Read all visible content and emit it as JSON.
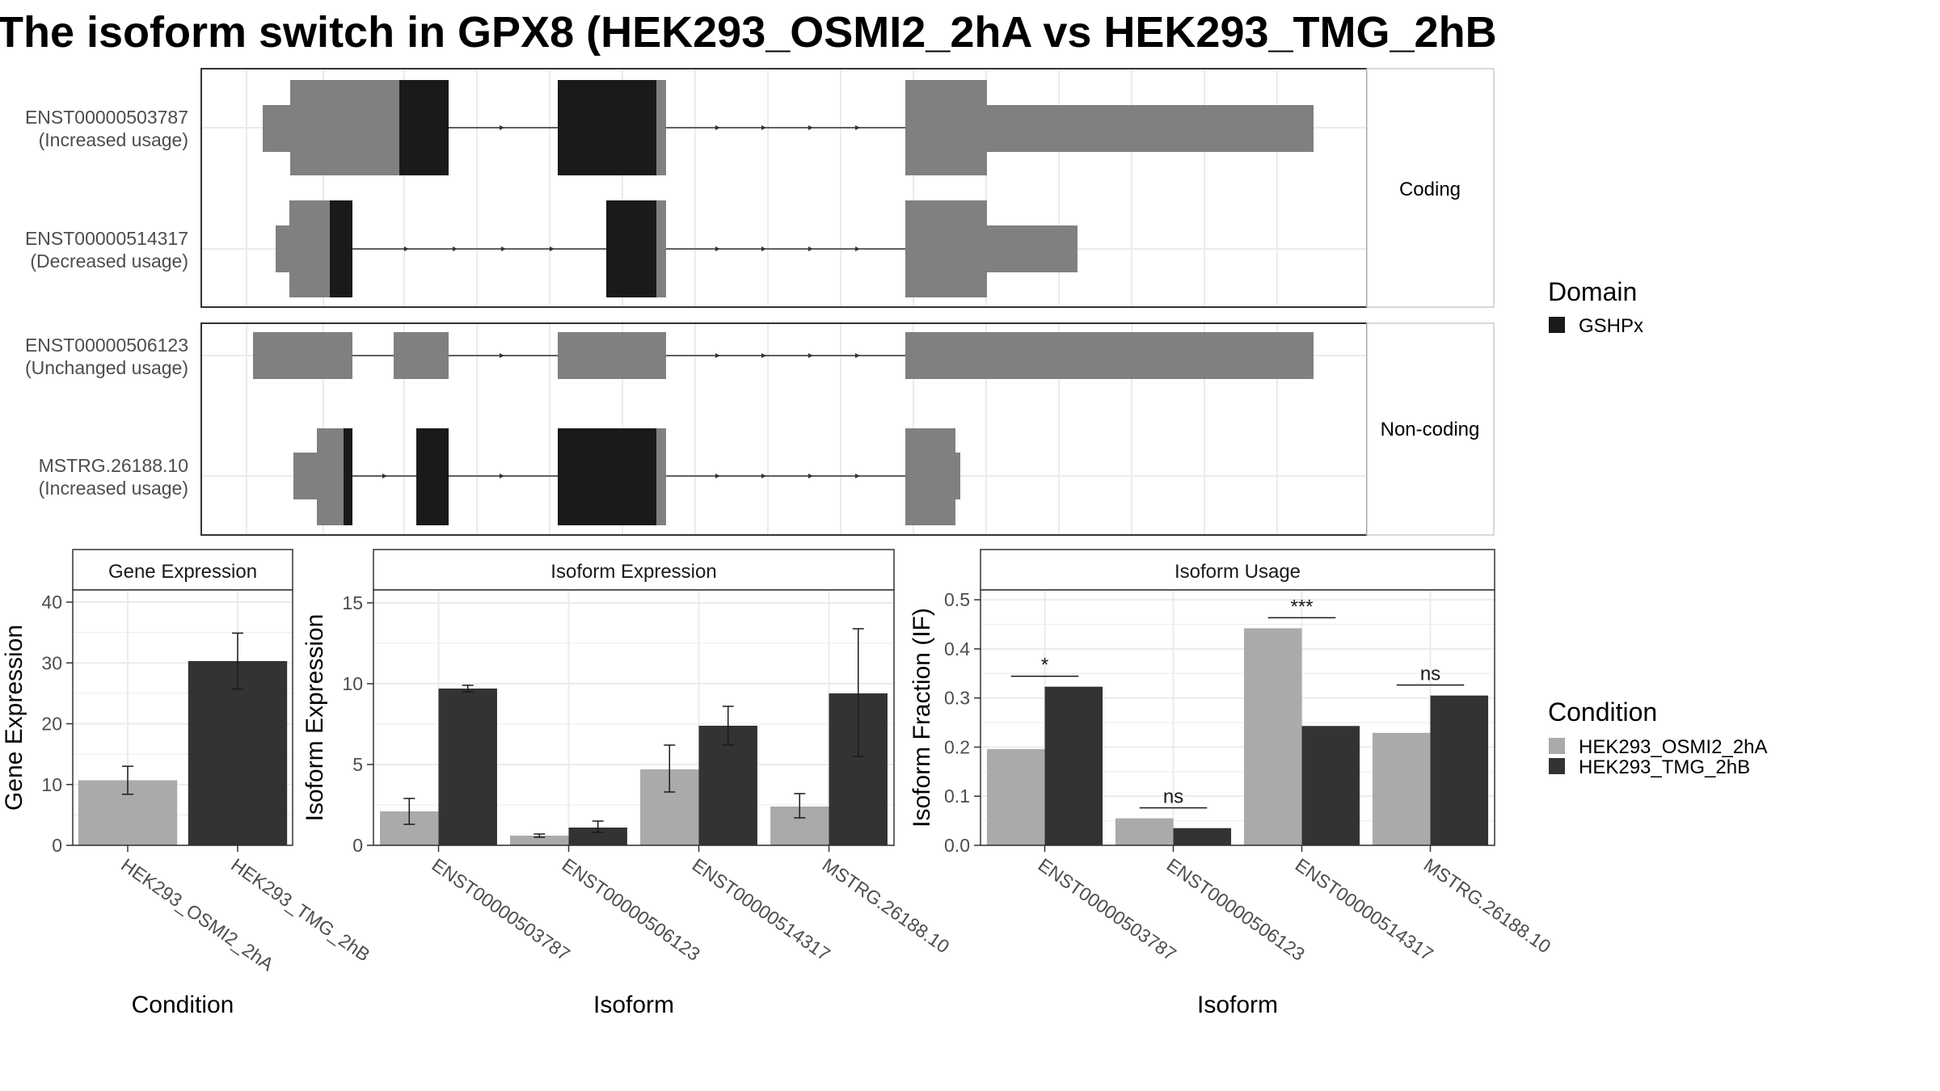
{
  "title": "The isoform switch in GPX8 (HEK293_OSMI2_2hA vs HEK293_TMG_2hB",
  "colors": {
    "exon": "#808080",
    "domain": "#1a1a1a",
    "cond_a": "#aaaaaa",
    "cond_b": "#333333",
    "grid": "#ebebeb",
    "strip_bg": "#ffffff"
  },
  "structure": {
    "coding_label": "Coding",
    "noncoding_label": "Non-coding",
    "transcripts": [
      {
        "id": "ENST00000503787",
        "usage": "(Increased usage)",
        "group": "coding"
      },
      {
        "id": "ENST00000514317",
        "usage": "(Decreased usage)",
        "group": "coding"
      },
      {
        "id": "ENST00000506123",
        "usage": "(Unchanged usage)",
        "group": "noncoding"
      },
      {
        "id": "MSTRG.26188.10",
        "usage": "(Increased usage)",
        "group": "noncoding"
      }
    ]
  },
  "legend_domain": {
    "title": "Domain",
    "items": [
      "GSHPx"
    ]
  },
  "legend_condition": {
    "title": "Condition",
    "items": [
      "HEK293_OSMI2_2hA",
      "HEK293_TMG_2hB"
    ]
  },
  "chart_data": [
    {
      "type": "bar",
      "strip": "Gene Expression",
      "xlabel": "Condition",
      "ylabel": "Gene Expression",
      "ylim": [
        0,
        42
      ],
      "yticks": [
        0,
        10,
        20,
        30,
        40
      ],
      "categories": [
        "HEK293_OSMI2_2hA",
        "HEK293_TMG_2hB"
      ],
      "values": [
        10.7,
        30.3
      ],
      "errors": [
        [
          8.4,
          13.0
        ],
        [
          25.7,
          34.9
        ]
      ]
    },
    {
      "type": "bar",
      "strip": "Isoform Expression",
      "xlabel": "Isoform",
      "ylabel": "Isoform Expression",
      "ylim": [
        0,
        15.8
      ],
      "yticks": [
        0,
        5,
        10,
        15
      ],
      "categories": [
        "ENST00000503787",
        "ENST00000506123",
        "ENST00000514317",
        "MSTRG.26188.10"
      ],
      "series": [
        {
          "name": "HEK293_OSMI2_2hA",
          "values": [
            2.1,
            0.6,
            4.7,
            2.4
          ],
          "errors": [
            [
              1.3,
              2.9
            ],
            [
              0.5,
              0.7
            ],
            [
              3.3,
              6.2
            ],
            [
              1.7,
              3.2
            ]
          ]
        },
        {
          "name": "HEK293_TMG_2hB",
          "values": [
            9.7,
            1.1,
            7.4,
            9.4
          ],
          "errors": [
            [
              9.5,
              9.9
            ],
            [
              0.8,
              1.5
            ],
            [
              6.2,
              8.6
            ],
            [
              5.5,
              13.4
            ]
          ]
        }
      ]
    },
    {
      "type": "bar",
      "strip": "Isoform Usage",
      "xlabel": "Isoform",
      "ylabel": "Isoform Fraction (IF)",
      "ylim": [
        0,
        0.52
      ],
      "yticks": [
        0.0,
        0.1,
        0.2,
        0.3,
        0.4,
        0.5
      ],
      "categories": [
        "ENST00000503787",
        "ENST00000506123",
        "ENST00000514317",
        "MSTRG.26188.10"
      ],
      "series": [
        {
          "name": "HEK293_OSMI2_2hA",
          "values": [
            0.196,
            0.055,
            0.442,
            0.229
          ]
        },
        {
          "name": "HEK293_TMG_2hB",
          "values": [
            0.323,
            0.035,
            0.243,
            0.305
          ]
        }
      ],
      "significance": [
        "*",
        "ns",
        "***",
        "ns"
      ]
    }
  ]
}
